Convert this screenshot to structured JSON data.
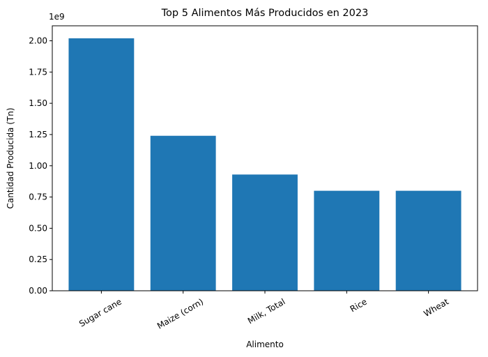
{
  "chart_data": {
    "type": "bar",
    "title": "Top 5 Alimentos Más Producidos en 2023",
    "xlabel": "Alimento",
    "ylabel": "Cantidad Producida (Tn)",
    "offset_label": "1e9",
    "categories": [
      "Sugar cane",
      "Maize (corn)",
      "Milk, Total",
      "Rice",
      "Wheat"
    ],
    "values": [
      2020000000.0,
      1240000000.0,
      930000000.0,
      800000000.0,
      800000000.0
    ],
    "ylim": [
      0,
      2120000000.0
    ],
    "yticks": [
      0,
      0.25,
      0.5,
      0.75,
      1.0,
      1.25,
      1.5,
      1.75,
      2.0
    ],
    "ytick_labels": [
      "0.00",
      "0.25",
      "0.50",
      "0.75",
      "1.00",
      "1.25",
      "1.50",
      "1.75",
      "2.00"
    ],
    "bar_color": "#1f77b4",
    "grid": false,
    "legend": false
  }
}
